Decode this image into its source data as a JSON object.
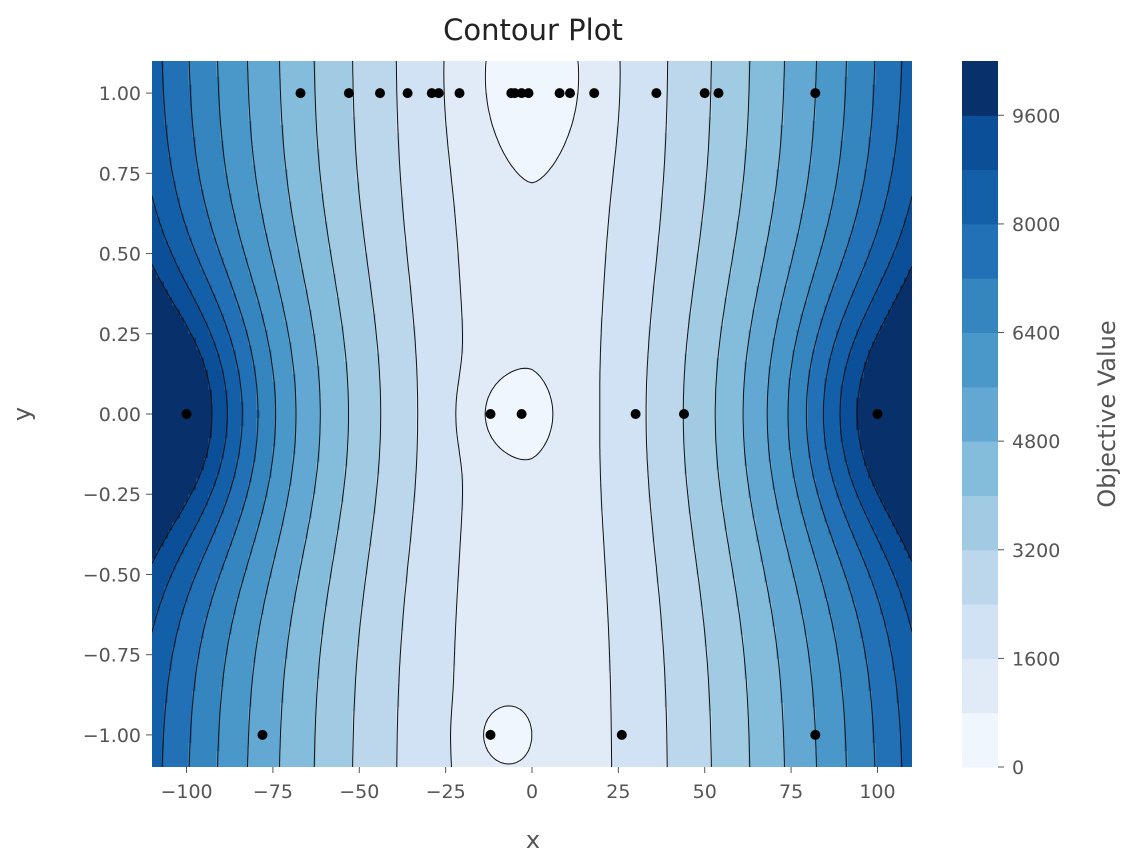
{
  "chart_data": {
    "type": "contour",
    "title": "Contour Plot",
    "xlabel": "x",
    "ylabel": "y",
    "xlim": [
      -110,
      110
    ],
    "ylim": [
      -1.1,
      1.1
    ],
    "xticks": [
      -100,
      -75,
      -50,
      -25,
      0,
      25,
      50,
      75,
      100
    ],
    "xtick_labels": [
      "−100",
      "−75",
      "−50",
      "−25",
      "0",
      "25",
      "50",
      "75",
      "100"
    ],
    "yticks": [
      1.0,
      0.75,
      0.5,
      0.25,
      0.0,
      -0.25,
      -0.5,
      -0.75,
      -1.0
    ],
    "ytick_labels": [
      "1.00",
      "0.75",
      "0.50",
      "0.25",
      "0.00",
      "−0.25",
      "−0.50",
      "−0.75",
      "−1.00"
    ],
    "colorbar": {
      "label": "Objective Value",
      "range": [
        0,
        10400
      ],
      "levels": [
        0,
        800,
        1600,
        2400,
        3200,
        4000,
        4800,
        5600,
        6400,
        7200,
        8000,
        8800,
        9600,
        10400
      ],
      "ticks": [
        0,
        1600,
        3200,
        4800,
        6400,
        8000,
        9600
      ],
      "tick_labels": [
        "0",
        "1600",
        "3200",
        "4800",
        "6400",
        "8000",
        "9600"
      ],
      "colors": [
        "#f0f6fd",
        "#e0ebf7",
        "#d0e2f3",
        "#bcd6ec",
        "#a1cbe2",
        "#84bcdb",
        "#63a8d3",
        "#4a97c9",
        "#3585bf",
        "#2270b5",
        "#1460a8",
        "#0a4f97",
        "#08306b"
      ]
    },
    "points": [
      {
        "x": -67,
        "y": 1
      },
      {
        "x": -53,
        "y": 1
      },
      {
        "x": -44,
        "y": 1
      },
      {
        "x": -36,
        "y": 1
      },
      {
        "x": -29,
        "y": 1
      },
      {
        "x": -27,
        "y": 1
      },
      {
        "x": -21,
        "y": 1
      },
      {
        "x": -6,
        "y": 1
      },
      {
        "x": -5,
        "y": 1
      },
      {
        "x": -3,
        "y": 1
      },
      {
        "x": -1,
        "y": 1
      },
      {
        "x": 8,
        "y": 1
      },
      {
        "x": 11,
        "y": 1
      },
      {
        "x": 18,
        "y": 1
      },
      {
        "x": 36,
        "y": 1
      },
      {
        "x": 50,
        "y": 1
      },
      {
        "x": 54,
        "y": 1
      },
      {
        "x": 82,
        "y": 1
      },
      {
        "x": -100,
        "y": 0
      },
      {
        "x": -12,
        "y": 0
      },
      {
        "x": -3,
        "y": 0
      },
      {
        "x": 30,
        "y": 0
      },
      {
        "x": 44,
        "y": 0
      },
      {
        "x": 100,
        "y": 0
      },
      {
        "x": -78,
        "y": -1
      },
      {
        "x": -12,
        "y": -1
      },
      {
        "x": 26,
        "y": -1
      },
      {
        "x": 82,
        "y": -1
      }
    ]
  }
}
